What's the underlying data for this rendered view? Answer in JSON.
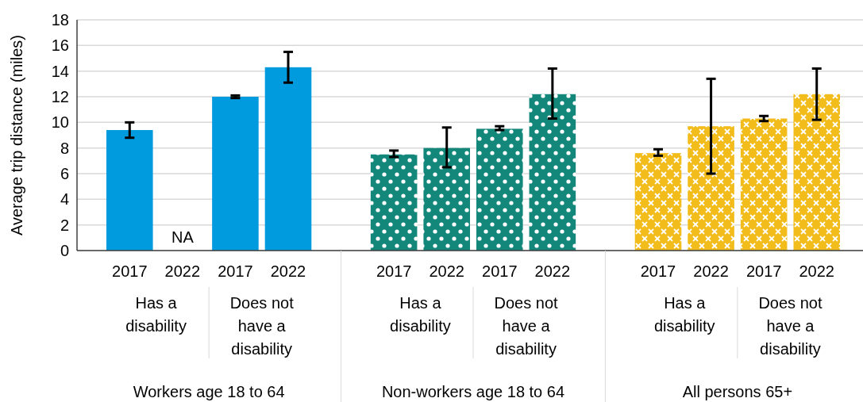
{
  "chart_data": {
    "type": "bar",
    "ylabel": "Average trip distance (miles)",
    "categories": [
      "2017",
      "2022",
      "2017",
      "2022",
      null,
      "2017",
      "2022",
      "2017",
      "2022",
      null,
      "2017",
      "2022",
      "2017",
      "2022"
    ],
    "series": [
      {
        "color": "#009ade",
        "values": [
          9.4,
          null,
          12.0,
          14.3,
          null,
          null,
          null,
          null,
          null,
          null,
          null,
          null,
          null,
          null
        ],
        "errors": [
          [
            8.8,
            10.0
          ],
          null,
          [
            11.9,
            12.1
          ],
          [
            13.1,
            15.5
          ],
          null,
          null,
          null,
          null,
          null,
          null,
          null,
          null,
          null,
          null
        ],
        "value_labels": [
          null,
          "NA",
          null,
          null,
          null,
          null,
          null,
          null,
          null,
          null,
          null,
          null,
          null,
          null
        ]
      },
      {
        "color": "#12877a",
        "values": [
          null,
          null,
          null,
          null,
          null,
          7.5,
          8.0,
          9.5,
          12.2,
          null,
          null,
          null,
          null,
          null
        ],
        "errors": [
          null,
          null,
          null,
          null,
          null,
          [
            7.3,
            7.8
          ],
          [
            6.5,
            9.6
          ],
          [
            9.4,
            9.7
          ],
          [
            10.3,
            14.2
          ],
          null,
          null,
          null,
          null,
          null
        ]
      },
      {
        "color": "#f2bc1b",
        "values": [
          null,
          null,
          null,
          null,
          null,
          null,
          null,
          null,
          null,
          null,
          7.6,
          9.7,
          10.3,
          12.2
        ],
        "errors": [
          null,
          null,
          null,
          null,
          null,
          null,
          null,
          null,
          null,
          null,
          [
            7.4,
            7.9
          ],
          [
            6.0,
            13.4
          ],
          [
            10.1,
            10.5
          ],
          [
            10.2,
            14.2
          ]
        ]
      }
    ],
    "annotations": [
      "Has a disability",
      "Does not have a disability",
      "Has a disability",
      "Does not have a disability",
      "Has a disability",
      "Does not have a disability",
      "Workers age 18 to 64",
      "Non-workers age 18 to 64",
      "All persons 65+"
    ],
    "ylim": [
      0,
      18
    ],
    "yticks": [
      0,
      2,
      4,
      6,
      8,
      10,
      12,
      14,
      16,
      18
    ],
    "grid": "y"
  }
}
